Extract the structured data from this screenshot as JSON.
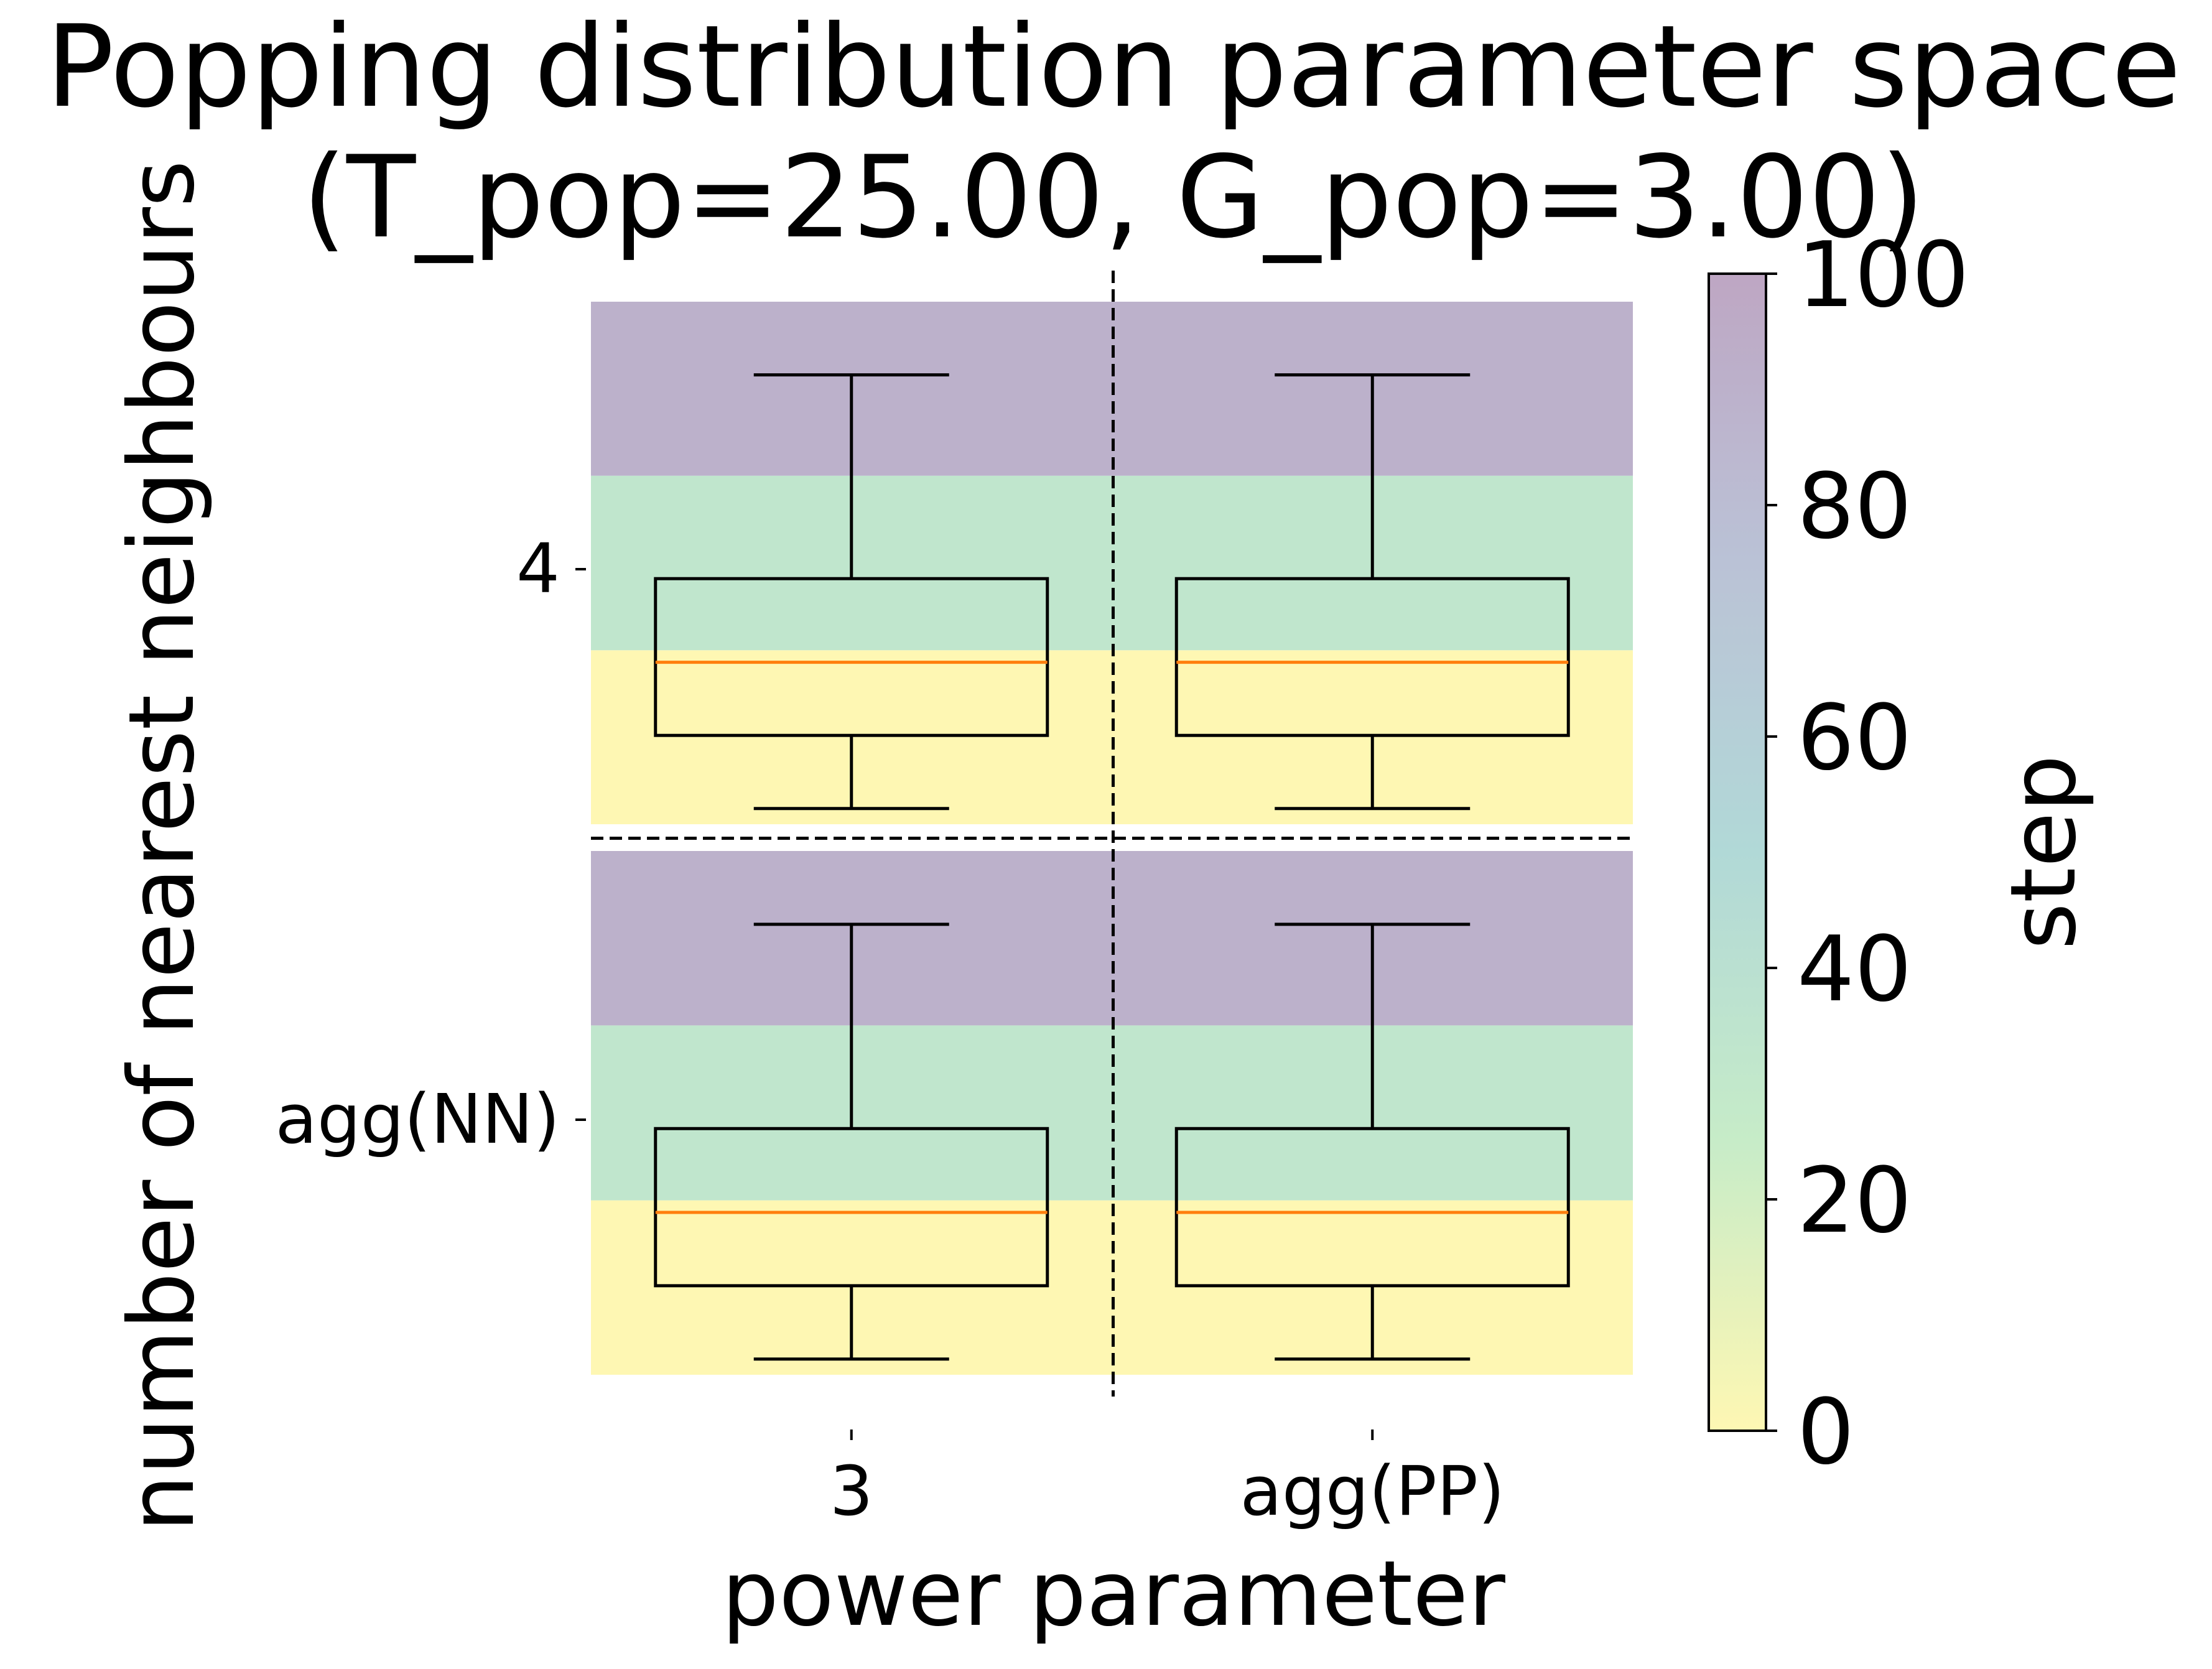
{
  "chart_data": {
    "type": "box",
    "title": "Popping distribution parameter space\n(T_pop=25.00, G_pop=3.00)",
    "xlabel": "power parameter",
    "ylabel": "number of nearest neighbours",
    "x_categories": [
      "3",
      "agg(PP)"
    ],
    "y_categories": [
      "4",
      "agg(NN)"
    ],
    "step_bands": [
      {
        "from": 0,
        "to": 33.3,
        "step": 0
      },
      {
        "from": 33.3,
        "to": 66.7,
        "step": 33
      },
      {
        "from": 66.7,
        "to": 100,
        "step": 90
      }
    ],
    "boxes": [
      {
        "row": "4",
        "col": "3",
        "whislo": 3,
        "q1": 17,
        "med": 31,
        "q3": 47,
        "whishi": 86
      },
      {
        "row": "4",
        "col": "agg(PP)",
        "whislo": 3,
        "q1": 17,
        "med": 31,
        "q3": 47,
        "whishi": 86
      },
      {
        "row": "agg(NN)",
        "col": "3",
        "whislo": 3,
        "q1": 17,
        "med": 31,
        "q3": 47,
        "whishi": 86
      },
      {
        "row": "agg(NN)",
        "col": "agg(PP)",
        "whislo": 3,
        "q1": 17,
        "med": 31,
        "q3": 47,
        "whishi": 86
      }
    ],
    "colorbar": {
      "label": "step",
      "range": [
        0,
        100
      ],
      "ticks": [
        0,
        20,
        40,
        60,
        80,
        100
      ],
      "colormap": "viridis_r",
      "alpha": 0.35
    },
    "colors": {
      "box": "#000000",
      "median": "#ff7f0e",
      "divider": "#000000"
    }
  }
}
